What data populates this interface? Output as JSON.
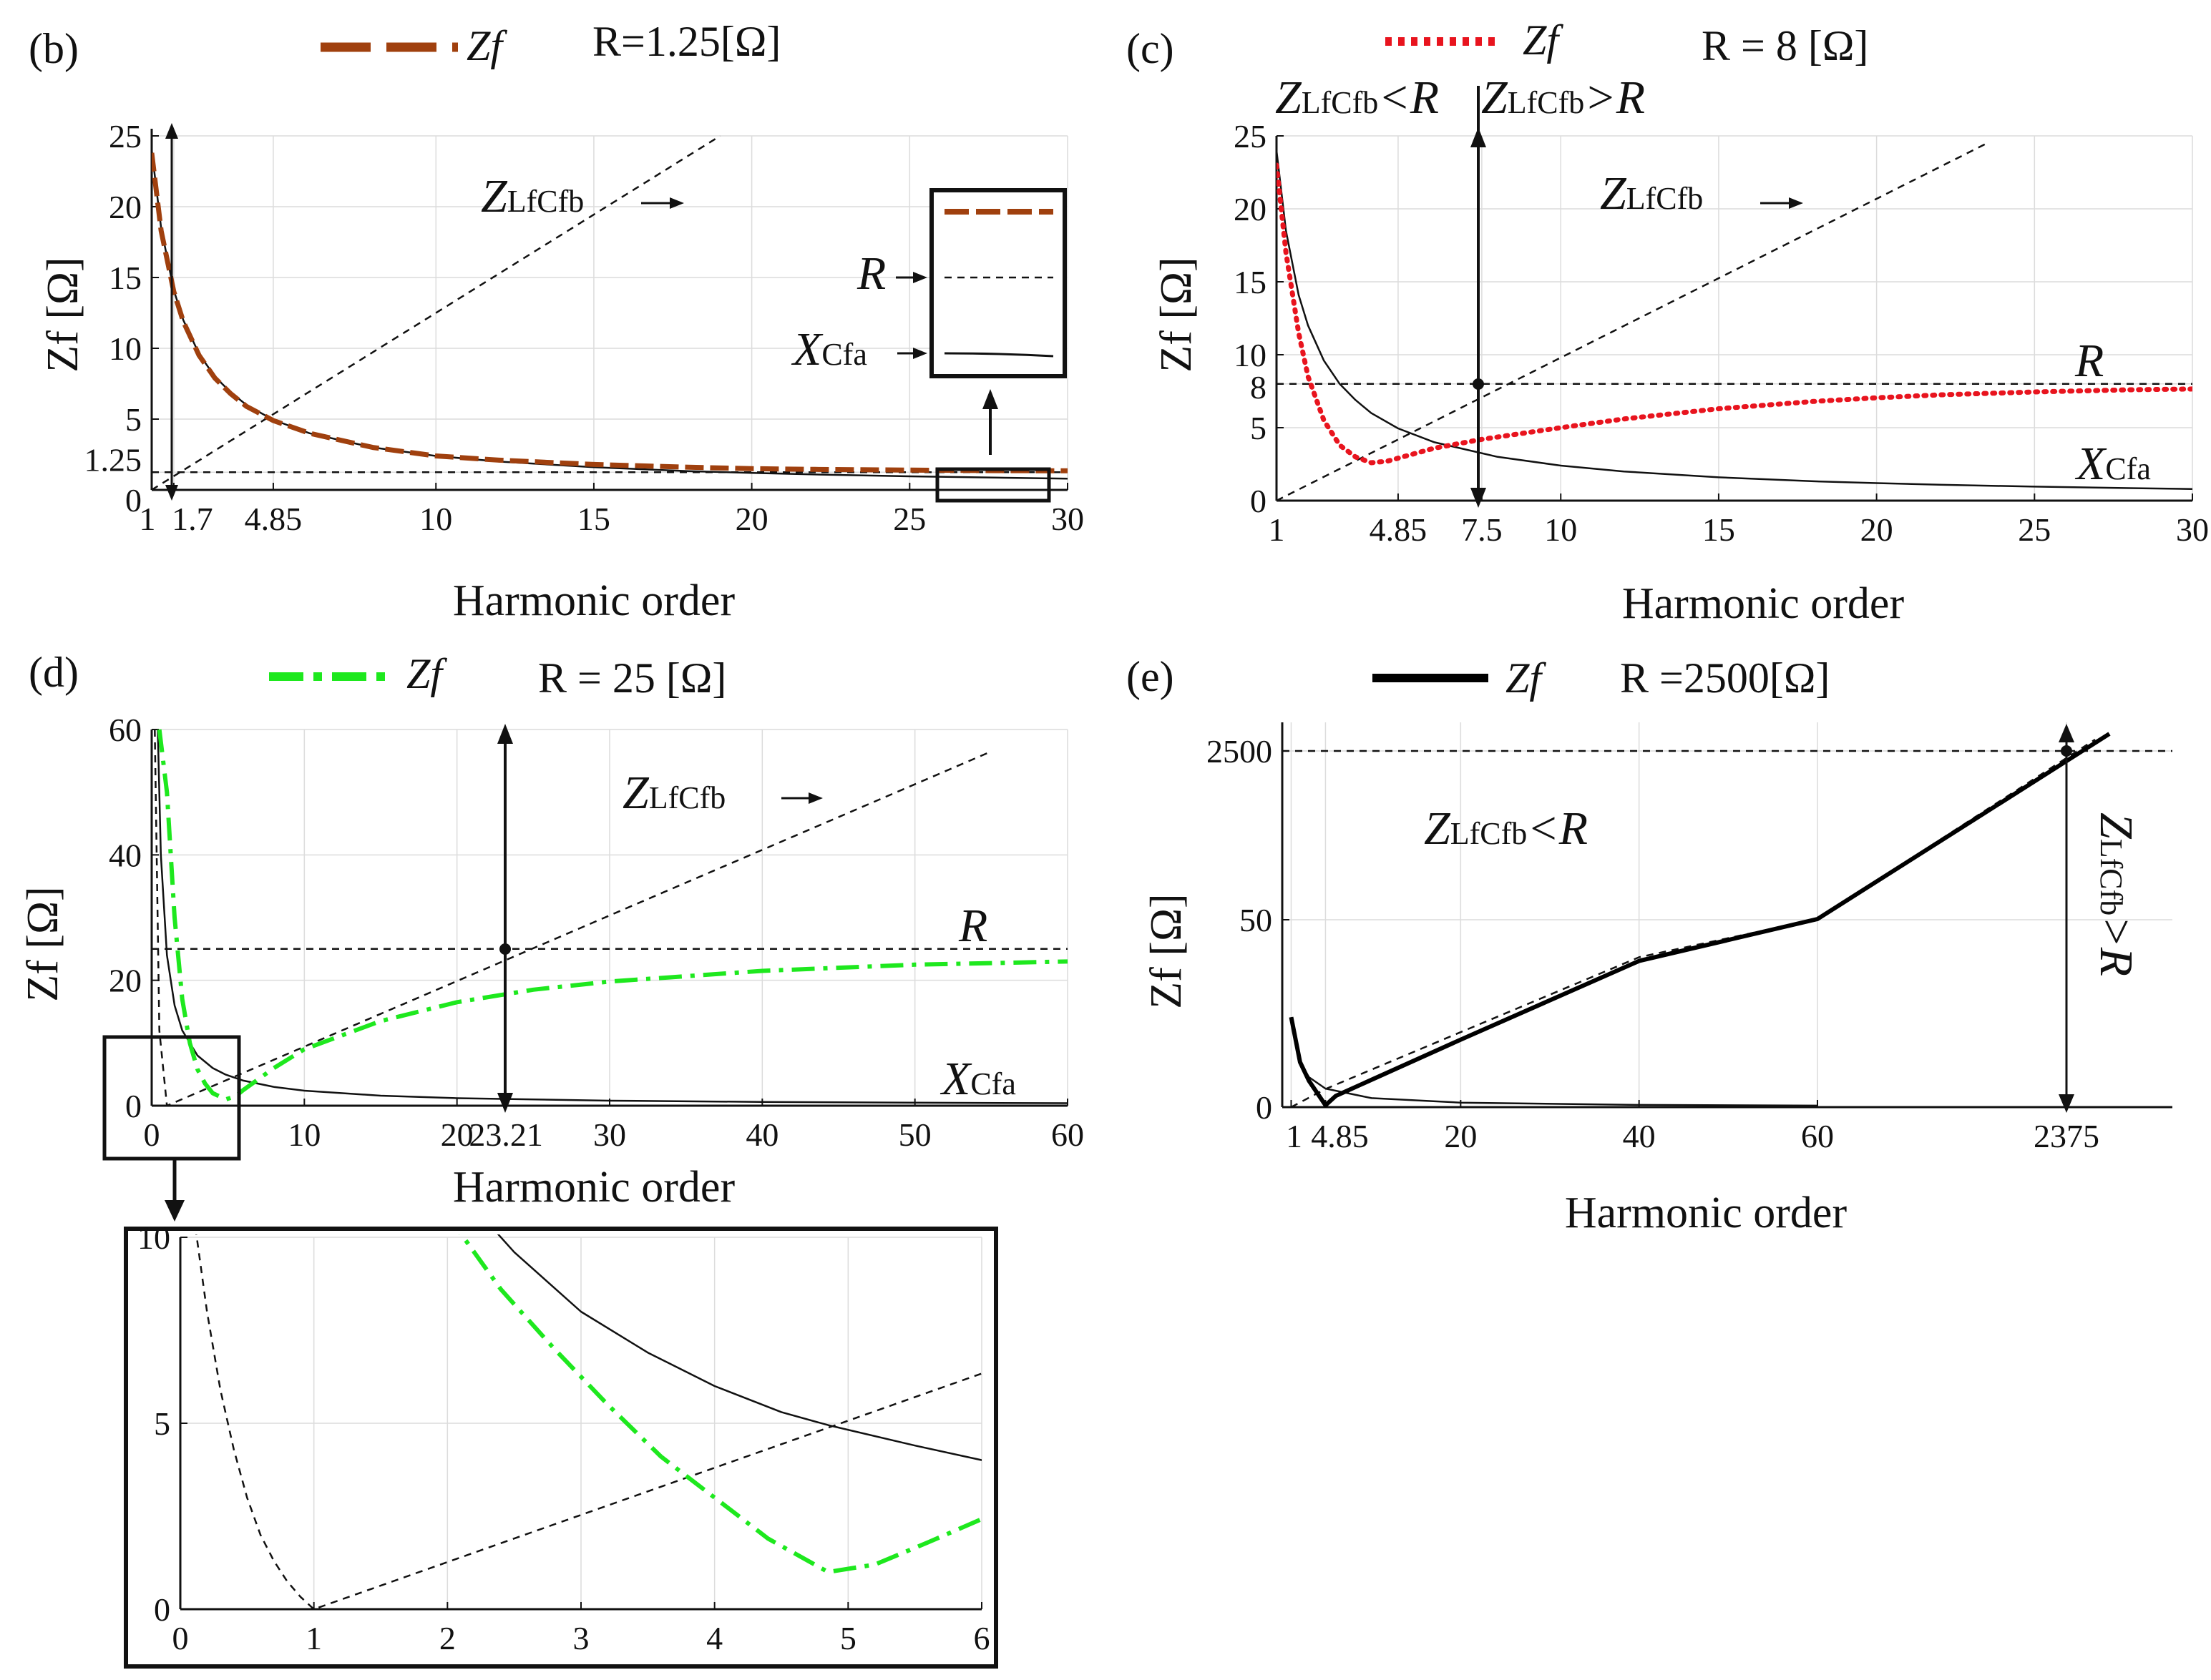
{
  "chart_data": [
    {
      "panel": "(b)",
      "type": "line",
      "legend_label": "Zf",
      "legend_text": "R=1.25[Ω]",
      "legend_color": "#a0400e",
      "R": 1.25,
      "xlabel": "Harmonic order",
      "ylabel": "Zf [Ω]",
      "xlim": [
        1,
        30
      ],
      "ylim": [
        0,
        25
      ],
      "xticks": [
        "1",
        "1.7",
        "4.85",
        "10",
        "15",
        "20",
        "25",
        "30"
      ],
      "xtick_values": [
        1,
        1.7,
        4.85,
        10,
        15,
        20,
        25,
        30
      ],
      "yticks": [
        "0",
        "1.25",
        "5",
        "10",
        "15",
        "20",
        "25"
      ],
      "ytick_values": [
        0,
        1.25,
        5,
        10,
        15,
        20,
        25
      ],
      "curve_labels": {
        "zl": "Z",
        "zl_sub": "LfCfb",
        "r": "R",
        "xc": "X",
        "xc_sub": "Cfa"
      },
      "series": [
        {
          "name": "Zf",
          "style": "brown-dash",
          "points": [
            [
              1,
              23.8
            ],
            [
              1.3,
              18.3
            ],
            [
              1.7,
              14.0
            ],
            [
              2,
              11.9
            ],
            [
              2.5,
              9.5
            ],
            [
              3,
              7.9
            ],
            [
              3.5,
              6.8
            ],
            [
              4,
              5.9
            ],
            [
              4.85,
              4.9
            ],
            [
              6,
              4.0
            ],
            [
              8,
              3.0
            ],
            [
              10,
              2.4
            ],
            [
              12,
              2.1
            ],
            [
              15,
              1.8
            ],
            [
              18,
              1.6
            ],
            [
              20,
              1.5
            ],
            [
              22,
              1.45
            ],
            [
              25,
              1.4
            ],
            [
              28,
              1.36
            ],
            [
              30,
              1.35
            ]
          ]
        },
        {
          "name": "XCfa",
          "style": "black-solid",
          "points": [
            [
              1,
              24.0
            ],
            [
              1.3,
              18.5
            ],
            [
              1.7,
              14.1
            ],
            [
              2,
              12.0
            ],
            [
              2.5,
              9.6
            ],
            [
              3,
              8.0
            ],
            [
              3.5,
              6.9
            ],
            [
              4,
              6.0
            ],
            [
              4.85,
              4.95
            ],
            [
              6,
              4.0
            ],
            [
              8,
              3.0
            ],
            [
              10,
              2.4
            ],
            [
              12,
              2.0
            ],
            [
              15,
              1.6
            ],
            [
              18,
              1.33
            ],
            [
              20,
              1.2
            ],
            [
              22,
              1.09
            ],
            [
              25,
              0.96
            ],
            [
              28,
              0.86
            ],
            [
              30,
              0.8
            ]
          ]
        },
        {
          "name": "ZLfCfb",
          "style": "black-dash",
          "points": [
            [
              1,
              0
            ],
            [
              19,
              25.0
            ]
          ]
        },
        {
          "name": "R",
          "style": "black-dash",
          "points": [
            [
              1,
              1.25
            ],
            [
              30,
              1.25
            ]
          ]
        }
      ]
    },
    {
      "panel": "(c)",
      "type": "line",
      "legend_label": "Zf",
      "legend_text": "R = 8 [Ω]",
      "legend_color": "#e8141e",
      "R": 8,
      "xlabel": "Harmonic order",
      "ylabel": "Zf [Ω]",
      "xlim": [
        1,
        30
      ],
      "ylim": [
        0,
        25
      ],
      "xticks": [
        "1",
        "4.85",
        "7.5",
        "10",
        "15",
        "20",
        "25",
        "30"
      ],
      "xtick_values": [
        1,
        4.85,
        7.5,
        10,
        15,
        20,
        25,
        30
      ],
      "yticks": [
        "0",
        "5",
        "8",
        "10",
        "15",
        "20",
        "25"
      ],
      "ytick_values": [
        0,
        5,
        8,
        10,
        15,
        20,
        25
      ],
      "region_labels": {
        "left_pre": "Z",
        "left_sub": "LfCfb",
        "left_post": "<R",
        "right_pre": "Z",
        "right_sub": "LfCfb",
        "right_post": ">R"
      },
      "curve_labels": {
        "zl": "Z",
        "zl_sub": "LfCfb",
        "r": "R",
        "xc": "X",
        "xc_sub": "Cfa"
      },
      "series": [
        {
          "name": "Zf",
          "style": "red-dot",
          "points": [
            [
              1,
              23.0
            ],
            [
              1.3,
              17.0
            ],
            [
              1.7,
              11.5
            ],
            [
              2,
              8.5
            ],
            [
              2.5,
              5.5
            ],
            [
              3,
              3.8
            ],
            [
              3.5,
              3.0
            ],
            [
              4,
              2.6
            ],
            [
              4.5,
              2.7
            ],
            [
              5,
              3.0
            ],
            [
              6,
              3.6
            ],
            [
              7.5,
              4.2
            ],
            [
              10,
              5.0
            ],
            [
              12,
              5.6
            ],
            [
              15,
              6.3
            ],
            [
              18,
              6.8
            ],
            [
              20,
              7.05
            ],
            [
              22,
              7.25
            ],
            [
              25,
              7.45
            ],
            [
              28,
              7.6
            ],
            [
              30,
              7.65
            ]
          ]
        },
        {
          "name": "XCfa",
          "style": "black-solid",
          "points": [
            [
              1,
              24.0
            ],
            [
              1.3,
              18.5
            ],
            [
              1.7,
              14.1
            ],
            [
              2,
              12.0
            ],
            [
              2.5,
              9.6
            ],
            [
              3,
              8.0
            ],
            [
              3.5,
              6.9
            ],
            [
              4,
              6.0
            ],
            [
              4.85,
              4.95
            ],
            [
              6,
              4.0
            ],
            [
              8,
              3.0
            ],
            [
              10,
              2.4
            ],
            [
              12,
              2.0
            ],
            [
              15,
              1.6
            ],
            [
              18,
              1.33
            ],
            [
              20,
              1.2
            ],
            [
              22,
              1.09
            ],
            [
              25,
              0.96
            ],
            [
              28,
              0.86
            ],
            [
              30,
              0.8
            ]
          ]
        },
        {
          "name": "ZLfCfb",
          "style": "black-dash",
          "points": [
            [
              1,
              0
            ],
            [
              23.5,
              24.5
            ]
          ]
        },
        {
          "name": "R",
          "style": "black-dash",
          "points": [
            [
              1,
              8
            ],
            [
              30,
              8
            ]
          ]
        }
      ]
    },
    {
      "panel": "(d)",
      "type": "line",
      "legend_label": "Zf",
      "legend_text": "R = 25 [Ω]",
      "legend_color": "#1ee81e",
      "R": 25,
      "xlabel": "Harmonic order",
      "ylabel": "Zf [Ω]",
      "xlim": [
        0,
        60
      ],
      "ylim": [
        0,
        60
      ],
      "xticks": [
        "0",
        "10",
        "20",
        "23.21",
        "30",
        "40",
        "50",
        "60"
      ],
      "xtick_values": [
        0,
        10,
        20,
        23.21,
        30,
        40,
        50,
        60
      ],
      "yticks": [
        "0",
        "20",
        "40",
        "60"
      ],
      "ytick_values": [
        0,
        20,
        40,
        60
      ],
      "curve_labels": {
        "zl": "Z",
        "zl_sub": "LfCfb",
        "r": "R",
        "xc": "X",
        "xc_sub": "Cfa"
      },
      "series": [
        {
          "name": "Zf",
          "style": "green-dashdot",
          "points": [
            [
              0.5,
              60
            ],
            [
              1,
              50
            ],
            [
              1.5,
              30
            ],
            [
              2,
              17
            ],
            [
              2.5,
              10
            ],
            [
              3,
              5.8
            ],
            [
              3.5,
              3.5
            ],
            [
              4,
              2.0
            ],
            [
              4.85,
              1.0
            ],
            [
              5.5,
              1.5
            ],
            [
              6,
              2.5
            ],
            [
              8,
              6.0
            ],
            [
              10,
              9.0
            ],
            [
              15,
              13.5
            ],
            [
              20,
              16.5
            ],
            [
              25,
              18.5
            ],
            [
              30,
              19.8
            ],
            [
              40,
              21.5
            ],
            [
              50,
              22.5
            ],
            [
              60,
              23.0
            ]
          ]
        },
        {
          "name": "XCfa",
          "style": "black-solid",
          "points": [
            [
              0.4,
              60
            ],
            [
              0.6,
              40
            ],
            [
              1,
              24
            ],
            [
              1.5,
              16
            ],
            [
              2,
              12
            ],
            [
              3,
              8
            ],
            [
              4,
              6
            ],
            [
              4.85,
              4.95
            ],
            [
              6,
              4
            ],
            [
              8,
              3
            ],
            [
              10,
              2.4
            ],
            [
              15,
              1.6
            ],
            [
              20,
              1.2
            ],
            [
              30,
              0.8
            ],
            [
              40,
              0.6
            ],
            [
              50,
              0.48
            ],
            [
              60,
              0.4
            ]
          ]
        },
        {
          "name": "ZLfCfb",
          "style": "black-dash",
          "points": [
            [
              0.2,
              60
            ],
            [
              0.5,
              12
            ],
            [
              1,
              0
            ],
            [
              55,
              56.5
            ]
          ]
        },
        {
          "name": "R",
          "style": "black-dash",
          "points": [
            [
              0,
              25
            ],
            [
              60,
              25
            ]
          ]
        }
      ]
    },
    {
      "panel": "inset-d",
      "type": "line",
      "xlim": [
        0,
        6
      ],
      "ylim": [
        0,
        10
      ],
      "xticks": [
        "0",
        "1",
        "2",
        "3",
        "4",
        "5",
        "6"
      ],
      "xtick_values": [
        0,
        1,
        2,
        3,
        4,
        5,
        6
      ],
      "yticks": [
        "0",
        "5",
        "10"
      ],
      "ytick_values": [
        0,
        5,
        10
      ],
      "series": [
        {
          "name": "Zf",
          "style": "green-dashdot",
          "points": [
            [
              2,
              10.6
            ],
            [
              2.4,
              8.6
            ],
            [
              2.8,
              7.0
            ],
            [
              3.2,
              5.5
            ],
            [
              3.6,
              4.1
            ],
            [
              4,
              3.0
            ],
            [
              4.4,
              1.9
            ],
            [
              4.85,
              1.0
            ],
            [
              5.2,
              1.2
            ],
            [
              5.6,
              1.8
            ],
            [
              6.05,
              2.5
            ]
          ]
        },
        {
          "name": "XCfa",
          "style": "black-solid",
          "points": [
            [
              2.25,
              10.6
            ],
            [
              2.5,
              9.6
            ],
            [
              3,
              8.0
            ],
            [
              3.5,
              6.9
            ],
            [
              4,
              6.0
            ],
            [
              4.5,
              5.3
            ],
            [
              4.85,
              4.95
            ],
            [
              5.5,
              4.4
            ],
            [
              6.05,
              3.97
            ]
          ]
        },
        {
          "name": "ZLfCfb",
          "style": "black-dash",
          "points": [
            [
              0.1,
              10.6
            ],
            [
              0.2,
              8.0
            ],
            [
              0.3,
              5.9
            ],
            [
              0.4,
              4.3
            ],
            [
              0.5,
              3.0
            ],
            [
              0.6,
              2.0
            ],
            [
              0.7,
              1.3
            ],
            [
              0.8,
              0.75
            ],
            [
              0.9,
              0.33
            ],
            [
              1,
              0
            ],
            [
              6.05,
              6.4
            ]
          ]
        }
      ]
    },
    {
      "panel": "(e)",
      "type": "line",
      "legend_label": "Zf",
      "legend_text": "R =2500[Ω]",
      "legend_color": "#000000",
      "R": 2500,
      "xlabel": "Harmonic order",
      "ylabel": "Zf [Ω]",
      "note": "broken axes: x runs 1..60 then jumps to 2375; y runs 0..50 then jumps to 2500",
      "xticks": [
        "1",
        "4.85",
        "20",
        "40",
        "60",
        "2375"
      ],
      "xtick_values": [
        1,
        4.85,
        20,
        40,
        60,
        2375
      ],
      "yticks": [
        "0",
        "50",
        "2500"
      ],
      "ytick_values": [
        0,
        50,
        2500
      ],
      "region_labels": {
        "left_pre": "Z",
        "left_sub": "LfCfb",
        "left_post": "<R",
        "right_pre": "Z",
        "right_sub": "LfCfb",
        "right_post": ">R"
      },
      "series": [
        {
          "name": "Zf",
          "style": "black-thick",
          "points": [
            [
              1,
              24
            ],
            [
              2,
              12
            ],
            [
              3,
              7
            ],
            [
              4.85,
              0.5
            ],
            [
              6,
              3
            ],
            [
              20,
              18
            ],
            [
              40,
              39
            ],
            [
              60,
              60
            ],
            [
              2375,
              2500
            ]
          ]
        },
        {
          "name": "XCfa",
          "style": "black-solid",
          "points": [
            [
              1,
              24
            ],
            [
              2,
              12
            ],
            [
              3,
              8
            ],
            [
              4.85,
              4.95
            ],
            [
              10,
              2.4
            ],
            [
              20,
              1.2
            ],
            [
              40,
              0.6
            ],
            [
              60,
              0.4
            ]
          ]
        },
        {
          "name": "ZLfCfb",
          "style": "black-dash",
          "points": [
            [
              1,
              0
            ],
            [
              4.85,
              4.85
            ],
            [
              20,
              20
            ],
            [
              40,
              40
            ],
            [
              60,
              60
            ],
            [
              2375,
              2500
            ]
          ]
        },
        {
          "name": "R",
          "style": "black-dash",
          "points": [
            [
              0,
              2500
            ],
            [
              2375,
              2500
            ]
          ]
        }
      ]
    }
  ]
}
